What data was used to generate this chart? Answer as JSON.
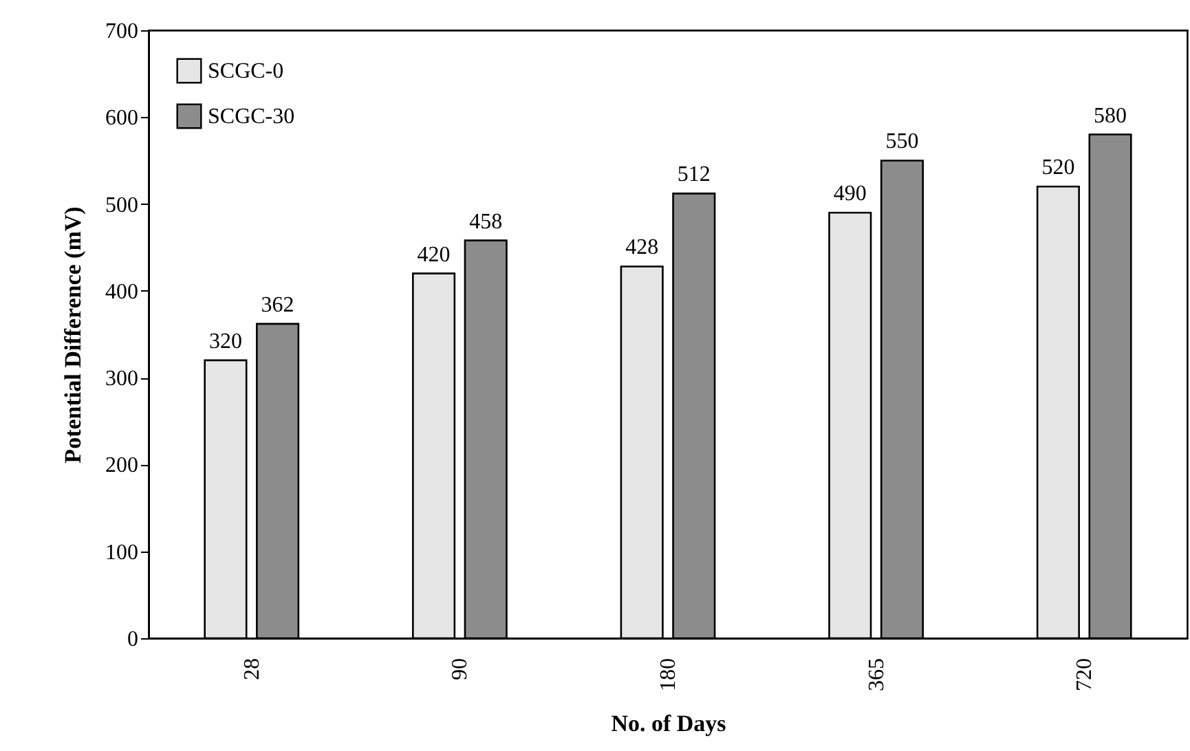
{
  "chart_data": {
    "type": "bar",
    "xlabel": "No. of Days",
    "ylabel": "Potential Difference (mV)",
    "categories": [
      "28",
      "90",
      "180",
      "365",
      "720"
    ],
    "series": [
      {
        "name": "SCGC-0",
        "color": "#e6e6e6",
        "values": [
          320,
          420,
          428,
          490,
          520
        ]
      },
      {
        "name": "SCGC-30",
        "color": "#8c8c8c",
        "values": [
          362,
          458,
          512,
          550,
          580
        ]
      }
    ],
    "ylim": [
      0,
      700
    ],
    "yticks": [
      0,
      100,
      200,
      300,
      400,
      500,
      600,
      700
    ],
    "legend": "top left",
    "data_labels": true
  }
}
